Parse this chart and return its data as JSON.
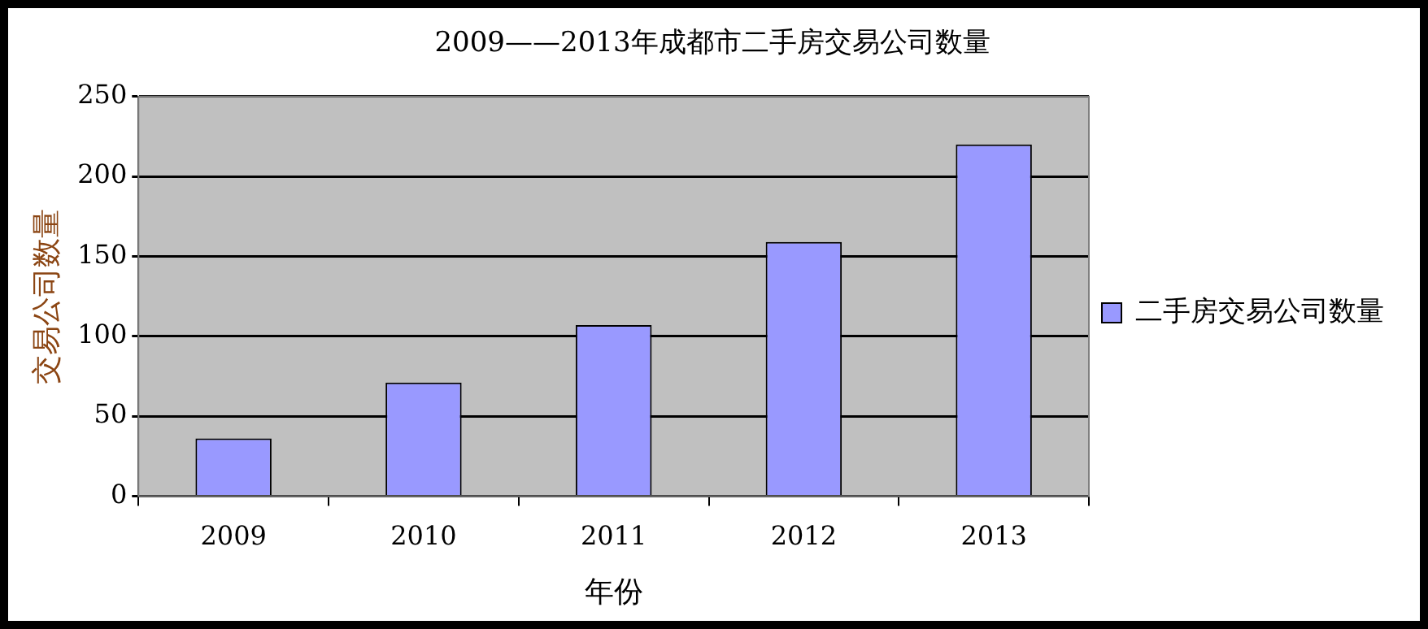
{
  "chart_data": {
    "type": "bar",
    "title": "2009——2013年成都市二手房交易公司数量",
    "xlabel": "年份",
    "ylabel": "交易公司数量",
    "categories": [
      "2009",
      "2010",
      "2011",
      "2012",
      "2013"
    ],
    "series": [
      {
        "name": "二手房交易公司数量",
        "color": "#9999ff",
        "values": [
          36,
          71,
          107,
          159,
          220
        ]
      }
    ],
    "ylim": [
      0,
      250
    ],
    "yticks": [
      0,
      50,
      100,
      150,
      200,
      250
    ],
    "grid": "y",
    "legend": "right"
  }
}
